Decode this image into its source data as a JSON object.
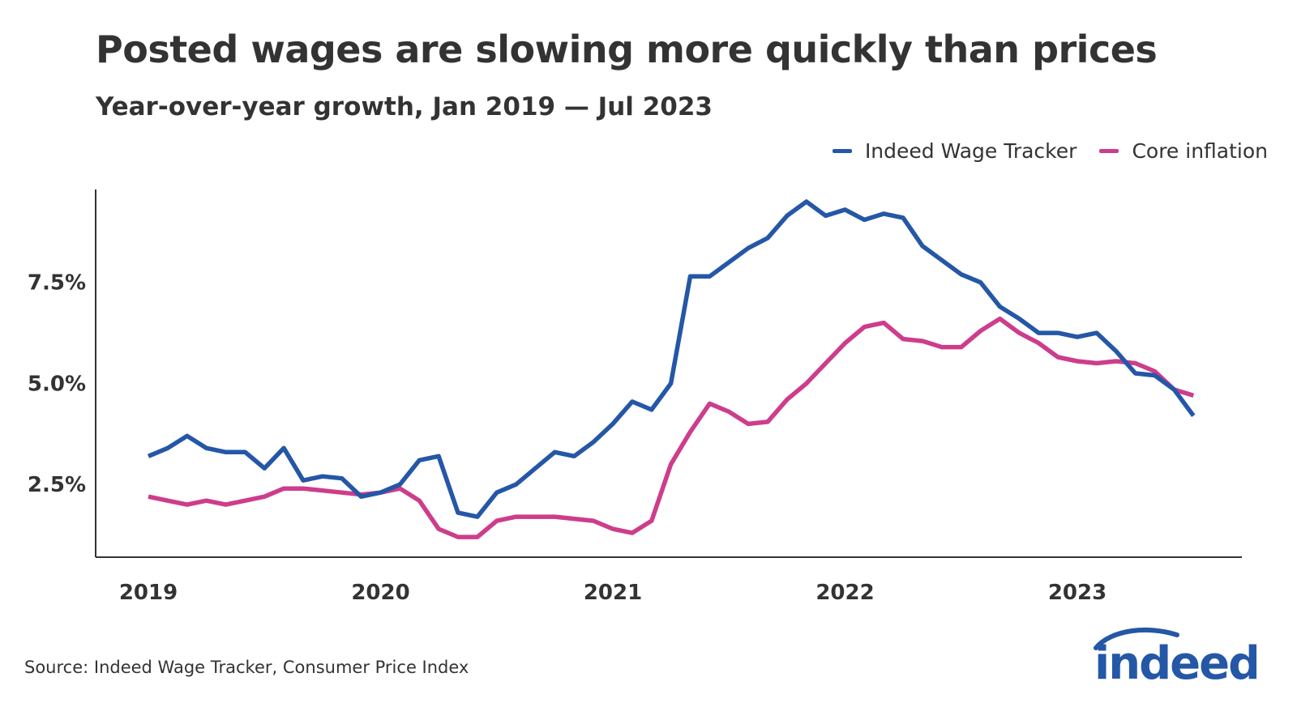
{
  "chart_data": {
    "type": "line",
    "title": "Posted wages are slowing more quickly than prices",
    "subtitle": "Year-over-year growth, Jan 2019 — Jul 2023",
    "xlabel": "",
    "ylabel": "",
    "x_tick_labels": [
      "2019",
      "2020",
      "2021",
      "2022",
      "2023"
    ],
    "y_tick_labels": [
      "2.5%",
      "5.0%",
      "7.5%"
    ],
    "y_tick_values": [
      2.5,
      5.0,
      7.5
    ],
    "ylim": [
      0.7,
      9.8
    ],
    "x_start": "Jan 2019",
    "x_end": "Jul 2023",
    "legend_position": "top-right",
    "series": [
      {
        "name": "Indeed Wage Tracker",
        "color": "#2557a7",
        "values": [
          3.2,
          3.4,
          3.7,
          3.4,
          3.3,
          3.3,
          2.9,
          3.4,
          2.6,
          2.7,
          2.65,
          2.2,
          2.3,
          2.5,
          3.1,
          3.2,
          1.8,
          1.7,
          2.3,
          2.5,
          2.9,
          3.3,
          3.2,
          3.55,
          4.0,
          4.55,
          4.35,
          5.0,
          7.65,
          7.65,
          8.0,
          8.35,
          8.6,
          9.15,
          9.5,
          9.15,
          9.3,
          9.05,
          9.2,
          9.1,
          8.4,
          8.05,
          7.7,
          7.5,
          6.9,
          6.6,
          6.25,
          6.25,
          6.15,
          6.25,
          5.8,
          5.25,
          5.2,
          4.85,
          4.2
        ]
      },
      {
        "name": "Core inflation",
        "color": "#cd3d8c",
        "values": [
          2.2,
          2.1,
          2.0,
          2.1,
          2.0,
          2.1,
          2.2,
          2.4,
          2.4,
          2.35,
          2.3,
          2.25,
          2.3,
          2.4,
          2.1,
          1.4,
          1.2,
          1.2,
          1.6,
          1.7,
          1.7,
          1.7,
          1.65,
          1.6,
          1.4,
          1.3,
          1.6,
          3.0,
          3.8,
          4.5,
          4.3,
          4.0,
          4.05,
          4.6,
          5.0,
          5.5,
          6.0,
          6.4,
          6.5,
          6.1,
          6.05,
          5.9,
          5.9,
          6.3,
          6.6,
          6.25,
          6.0,
          5.65,
          5.55,
          5.5,
          5.55,
          5.5,
          5.3,
          4.85,
          4.7
        ]
      }
    ]
  },
  "source": "Source: Indeed Wage Tracker, Consumer Price Index",
  "logo_text": "indeed",
  "colors": {
    "wage": "#2557a7",
    "inflation": "#cd3d8c",
    "axis": "#333333",
    "text": "#333333"
  }
}
